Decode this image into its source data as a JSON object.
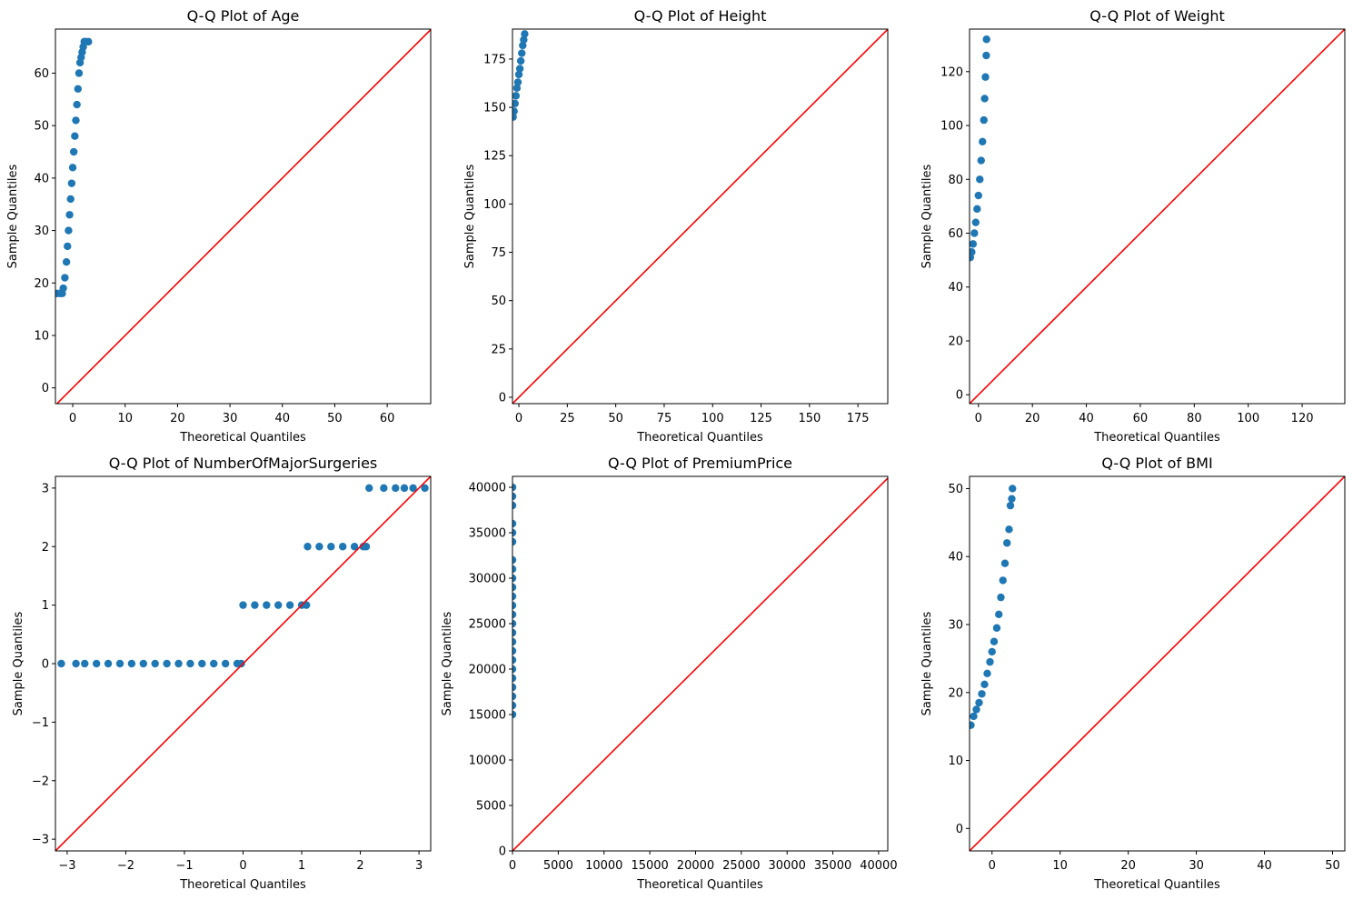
{
  "figure": {
    "point_color": "#1f77b4",
    "reference_line_color": "#ff0000"
  },
  "chart_data": [
    {
      "type": "scatter",
      "title": "Q-Q Plot of Age",
      "xlabel": "Theoretical Quantiles",
      "ylabel": "Sample Quantiles",
      "xlim": [
        -3.3,
        68.3
      ],
      "ylim": [
        -3.0,
        68.4
      ],
      "xticks": [
        0,
        10,
        20,
        30,
        40,
        50,
        60
      ],
      "yticks": [
        0,
        10,
        20,
        30,
        40,
        50,
        60
      ],
      "xtick_labels": [
        "0",
        "10",
        "20",
        "30",
        "40",
        "50",
        "60"
      ],
      "ytick_labels": [
        "0",
        "10",
        "20",
        "30",
        "40",
        "50",
        "60"
      ],
      "series": [
        {
          "name": "samples",
          "x": [
            -3.0,
            -2.4,
            -2.0,
            -1.8,
            -1.5,
            -1.2,
            -1.0,
            -0.8,
            -0.6,
            -0.4,
            -0.2,
            0.0,
            0.2,
            0.4,
            0.6,
            0.8,
            1.0,
            1.2,
            1.4,
            1.6,
            1.8,
            2.0,
            2.2,
            2.5,
            3.0
          ],
          "y": [
            18,
            18,
            18,
            19,
            21,
            24,
            27,
            30,
            33,
            36,
            39,
            42,
            45,
            48,
            51,
            54,
            57,
            60,
            62,
            63,
            64,
            65,
            66,
            66,
            66
          ]
        },
        {
          "name": "45-degree line",
          "x": [
            -3.3,
            68.4
          ],
          "y": [
            -3.3,
            68.4
          ]
        }
      ]
    },
    {
      "type": "scatter",
      "title": "Q-Q Plot of Height",
      "xlabel": "Theoretical Quantiles",
      "ylabel": "Sample Quantiles",
      "xlim": [
        -3.3,
        190.4
      ],
      "ylim": [
        -3.3,
        190.5
      ],
      "xticks": [
        0,
        25,
        50,
        75,
        100,
        125,
        150,
        175
      ],
      "yticks": [
        0,
        25,
        50,
        75,
        100,
        125,
        150,
        175
      ],
      "xtick_labels": [
        "0",
        "25",
        "50",
        "75",
        "100",
        "125",
        "150",
        "175"
      ],
      "ytick_labels": [
        "0",
        "25",
        "50",
        "75",
        "100",
        "125",
        "150",
        "175"
      ],
      "series": [
        {
          "name": "samples",
          "x": [
            -3.0,
            -2.5,
            -2.0,
            -1.5,
            -1.0,
            -0.5,
            0.0,
            0.5,
            1.0,
            1.5,
            2.0,
            2.5,
            3.0
          ],
          "y": [
            145,
            148,
            152,
            156,
            160,
            163,
            167,
            170,
            174,
            178,
            182,
            185,
            188
          ]
        },
        {
          "name": "45-degree line",
          "x": [
            -3.3,
            190.5
          ],
          "y": [
            -3.3,
            190.5
          ]
        }
      ]
    },
    {
      "type": "scatter",
      "title": "Q-Q Plot of Weight",
      "xlabel": "Theoretical Quantiles",
      "ylabel": "Sample Quantiles",
      "xlim": [
        -3.3,
        135.8
      ],
      "ylim": [
        -3.3,
        135.8
      ],
      "xticks": [
        0,
        20,
        40,
        60,
        80,
        100,
        120
      ],
      "yticks": [
        0,
        20,
        40,
        60,
        80,
        100,
        120
      ],
      "xtick_labels": [
        "0",
        "20",
        "40",
        "60",
        "80",
        "100",
        "120"
      ],
      "ytick_labels": [
        "0",
        "20",
        "40",
        "60",
        "80",
        "100",
        "120"
      ],
      "series": [
        {
          "name": "samples",
          "x": [
            -3.0,
            -2.5,
            -2.0,
            -1.5,
            -1.0,
            -0.5,
            0.0,
            0.5,
            1.0,
            1.5,
            2.0,
            2.3,
            2.6,
            2.9,
            3.0
          ],
          "y": [
            51,
            53,
            56,
            60,
            64,
            69,
            74,
            80,
            87,
            94,
            102,
            110,
            118,
            126,
            132
          ]
        },
        {
          "name": "45-degree line",
          "x": [
            -3.3,
            135.8
          ],
          "y": [
            -3.3,
            135.8
          ]
        }
      ]
    },
    {
      "type": "scatter",
      "title": "Q-Q Plot of NumberOfMajorSurgeries",
      "xlabel": "Theoretical Quantiles",
      "ylabel": "Sample Quantiles",
      "xlim": [
        -3.2,
        3.2
      ],
      "ylim": [
        -3.2,
        3.2
      ],
      "xticks": [
        -3,
        -2,
        -1,
        0,
        1,
        2,
        3
      ],
      "yticks": [
        -3,
        -2,
        -1,
        0,
        1,
        2,
        3
      ],
      "xtick_labels": [
        "−3",
        "−2",
        "−1",
        "0",
        "1",
        "2",
        "3"
      ],
      "ytick_labels": [
        "−3",
        "−2",
        "−1",
        "0",
        "1",
        "2",
        "3"
      ],
      "series": [
        {
          "name": "samples",
          "x": [
            -3.1,
            -2.85,
            -2.7,
            -2.5,
            -2.3,
            -2.1,
            -1.9,
            -1.7,
            -1.5,
            -1.3,
            -1.1,
            -0.9,
            -0.7,
            -0.5,
            -0.3,
            -0.1,
            -0.03,
            0.0,
            0.2,
            0.4,
            0.6,
            0.8,
            1.0,
            1.08,
            1.1,
            1.3,
            1.5,
            1.7,
            1.9,
            2.05,
            2.1,
            2.15,
            2.4,
            2.6,
            2.75,
            2.9,
            3.1
          ],
          "y": [
            0,
            0,
            0,
            0,
            0,
            0,
            0,
            0,
            0,
            0,
            0,
            0,
            0,
            0,
            0,
            0,
            0,
            1,
            1,
            1,
            1,
            1,
            1,
            1,
            2,
            2,
            2,
            2,
            2,
            2,
            2,
            3,
            3,
            3,
            3,
            3,
            3
          ]
        },
        {
          "name": "45-degree line",
          "x": [
            -3.2,
            3.2
          ],
          "y": [
            -3.2,
            3.2
          ]
        }
      ]
    },
    {
      "type": "scatter",
      "title": "Q-Q Plot of PremiumPrice",
      "xlabel": "Theoretical Quantiles",
      "ylabel": "Sample Quantiles",
      "xlim": [
        -3.3,
        41000
      ],
      "ylim": [
        0,
        41200
      ],
      "xticks": [
        0,
        5000,
        10000,
        15000,
        20000,
        25000,
        30000,
        35000,
        40000
      ],
      "yticks": [
        0,
        5000,
        10000,
        15000,
        20000,
        25000,
        30000,
        35000,
        40000
      ],
      "xtick_labels": [
        "0",
        "5000",
        "10000",
        "15000",
        "20000",
        "25000",
        "30000",
        "35000",
        "40000"
      ],
      "ytick_labels": [
        "0",
        "5000",
        "10000",
        "15000",
        "20000",
        "25000",
        "30000",
        "35000",
        "40000"
      ],
      "series": [
        {
          "name": "samples",
          "x": [
            0,
            0,
            0,
            0,
            0,
            0,
            0,
            0,
            0,
            0,
            0,
            0,
            0,
            0,
            0,
            0,
            0,
            0,
            0,
            0,
            0,
            0,
            0,
            0
          ],
          "y": [
            15000,
            16000,
            17000,
            18000,
            19000,
            20000,
            21000,
            22000,
            23000,
            24000,
            25000,
            26000,
            27000,
            28000,
            29000,
            30000,
            31000,
            32000,
            34000,
            35000,
            36000,
            38000,
            39000,
            40000
          ]
        },
        {
          "name": "45-degree line",
          "x": [
            0,
            41200
          ],
          "y": [
            0,
            41200
          ]
        }
      ]
    },
    {
      "type": "scatter",
      "title": "Q-Q Plot of BMI",
      "xlabel": "Theoretical Quantiles",
      "ylabel": "Sample Quantiles",
      "xlim": [
        -3.3,
        51.8
      ],
      "ylim": [
        -3.3,
        51.8
      ],
      "xticks": [
        0,
        10,
        20,
        30,
        40,
        50
      ],
      "yticks": [
        0,
        10,
        20,
        30,
        40,
        50
      ],
      "xtick_labels": [
        "0",
        "10",
        "20",
        "30",
        "40",
        "50"
      ],
      "ytick_labels": [
        "0",
        "10",
        "20",
        "30",
        "40",
        "50"
      ],
      "series": [
        {
          "name": "samples",
          "x": [
            -3.1,
            -2.7,
            -2.3,
            -1.9,
            -1.5,
            -1.1,
            -0.7,
            -0.3,
            0.0,
            0.3,
            0.7,
            1.0,
            1.3,
            1.6,
            1.9,
            2.2,
            2.5,
            2.7,
            2.9,
            3.0
          ],
          "y": [
            15.2,
            16.5,
            17.5,
            18.5,
            19.8,
            21.2,
            22.8,
            24.5,
            26.0,
            27.5,
            29.5,
            31.5,
            34.0,
            36.5,
            39.0,
            42.0,
            44.0,
            47.5,
            48.5,
            50.0
          ]
        },
        {
          "name": "45-degree line",
          "x": [
            -3.3,
            51.8
          ],
          "y": [
            -3.3,
            51.8
          ]
        }
      ]
    }
  ]
}
